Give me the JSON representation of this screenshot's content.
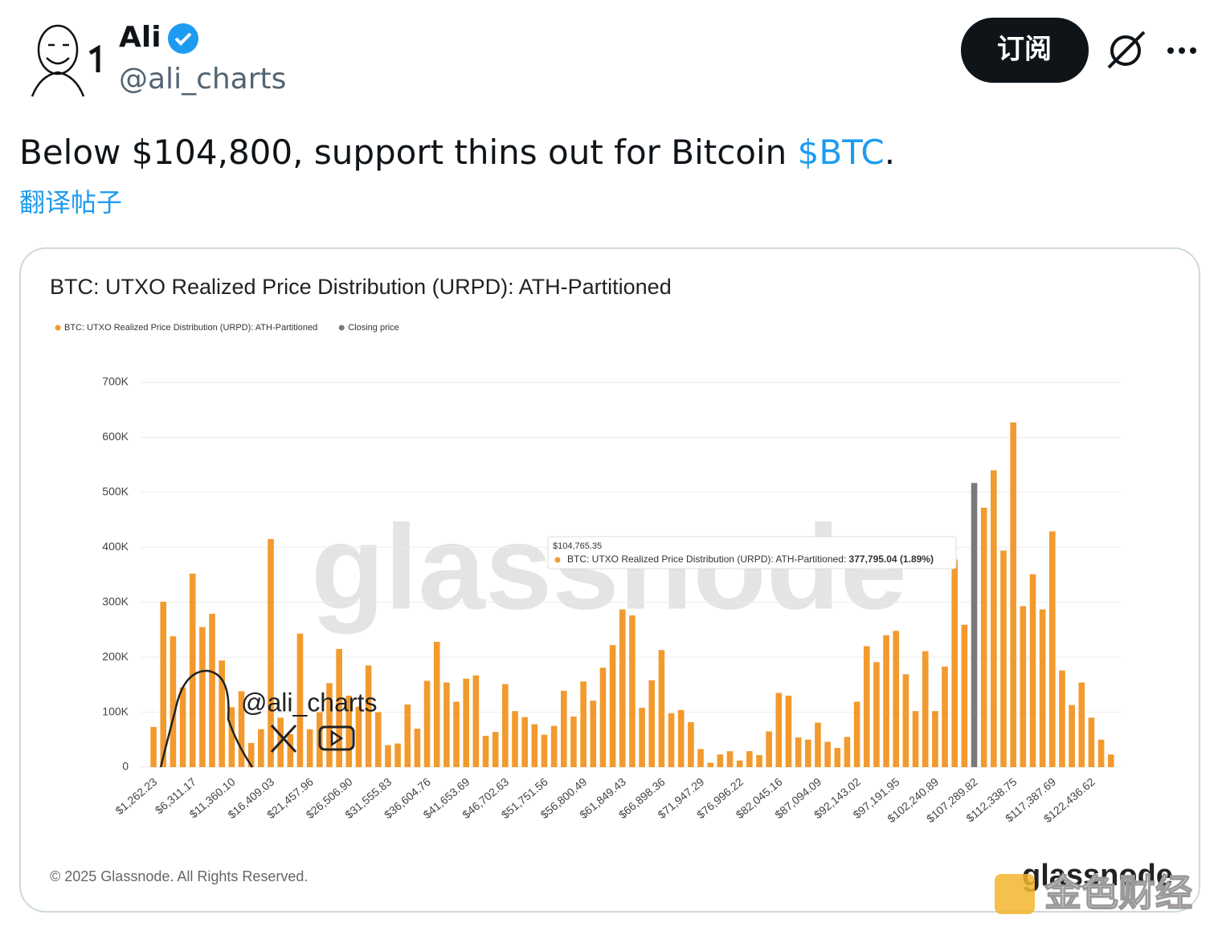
{
  "header": {
    "name": "Ali",
    "handle": "@ali_charts",
    "subscribe": "订阅"
  },
  "post": {
    "text": "Below $104,800, support thins out for Bitcoin ",
    "cashtag": "$BTC",
    "end": ".",
    "translate": "翻译帖子"
  },
  "chart_data": {
    "type": "bar",
    "title": "BTC: UTXO Realized Price Distribution (URPD): ATH-Partitioned",
    "categories": [
      "$1,262.23",
      null,
      null,
      null,
      "$6,311.17",
      null,
      null,
      null,
      "$11,360.10",
      null,
      null,
      null,
      "$16,409.03",
      null,
      null,
      null,
      "$21,457.96",
      null,
      null,
      null,
      "$26,506.90",
      null,
      null,
      null,
      "$31,555.83",
      null,
      null,
      null,
      "$36,604.76",
      null,
      null,
      null,
      "$41,653.69",
      null,
      null,
      null,
      "$46,702.63",
      null,
      null,
      null,
      "$51,751.56",
      null,
      null,
      null,
      "$56,800.49",
      null,
      null,
      null,
      "$61,849.43",
      null,
      null,
      null,
      "$66,898.36",
      null,
      null,
      null,
      "$71,947.29",
      null,
      null,
      null,
      "$76,996.22",
      null,
      null,
      null,
      "$82,045.16",
      null,
      null,
      null,
      "$87,094.09",
      null,
      null,
      null,
      "$92,143.02",
      null,
      null,
      null,
      "$97,191.95",
      null,
      null,
      null,
      "$102,240.89",
      null,
      null,
      null,
      "$107,289.82",
      null,
      null,
      null,
      "$112,338.75",
      null,
      null,
      null,
      "$117,387.69",
      null,
      null,
      null,
      "$122,436.62",
      null,
      null
    ],
    "series": [
      {
        "name": "BTC: UTXO Realized Price Distribution (URPD): ATH-Partitioned",
        "color": "#f29a2e",
        "values": [
          73000,
          301000,
          238000,
          145000,
          352000,
          255000,
          279000,
          194000,
          109000,
          138000,
          44000,
          69000,
          415000,
          90000,
          60000,
          243000,
          69000,
          100000,
          153000,
          215000,
          130000,
          110000,
          185000,
          100000,
          40000,
          43000,
          114000,
          70000,
          157000,
          228000,
          154000,
          119000,
          161000,
          167000,
          57000,
          64000,
          151000,
          102000,
          91000,
          78000,
          59000,
          75000,
          139000,
          92000,
          156000,
          121000,
          181000,
          222000,
          287000,
          276000,
          108000,
          158000,
          213000,
          98000,
          104000,
          82000,
          33000,
          8000,
          23000,
          29000,
          12000,
          29000,
          22000,
          65000,
          135000,
          130000,
          54000,
          50000,
          81000,
          46000,
          35000,
          55000,
          119000,
          220000,
          191000,
          240000,
          248000,
          169000,
          102000,
          211000,
          102000,
          183000,
          377795.04,
          259000,
          null,
          472000,
          540000,
          394000,
          627000,
          293000,
          351000,
          287000,
          429000,
          176000,
          113000,
          154000,
          90000,
          50000,
          23000
        ]
      },
      {
        "name": "Closing price",
        "color": "#7a7a7a",
        "values": [
          null,
          null,
          null,
          null,
          null,
          null,
          null,
          null,
          null,
          null,
          null,
          null,
          null,
          null,
          null,
          null,
          null,
          null,
          null,
          null,
          null,
          null,
          null,
          null,
          null,
          null,
          null,
          null,
          null,
          null,
          null,
          null,
          null,
          null,
          null,
          null,
          null,
          null,
          null,
          null,
          null,
          null,
          null,
          null,
          null,
          null,
          null,
          null,
          null,
          null,
          null,
          null,
          null,
          null,
          null,
          null,
          null,
          null,
          null,
          null,
          null,
          null,
          null,
          null,
          null,
          null,
          null,
          null,
          null,
          null,
          null,
          null,
          null,
          null,
          null,
          null,
          null,
          null,
          null,
          null,
          null,
          null,
          null,
          null,
          517000,
          null,
          null,
          null,
          null,
          null,
          null,
          null,
          null,
          null,
          null,
          null,
          null,
          null,
          null
        ]
      }
    ],
    "ylim": [
      0,
      700000
    ],
    "yticks": [
      0,
      {
        "value": 100000,
        "label": "100K"
      },
      {
        "value": 200000,
        "label": "200K"
      },
      {
        "value": 300000,
        "label": "300K"
      },
      {
        "value": 400000,
        "label": "400K"
      },
      {
        "value": 500000,
        "label": "500K"
      },
      {
        "value": 600000,
        "label": "600K"
      },
      {
        "value": 700000,
        "label": "700K"
      }
    ],
    "grid": true,
    "tooltip": {
      "title": "$104,765.35",
      "label": "BTC: UTXO Realized Price Distribution (URPD): ATH-Partitioned: ",
      "value": "377,795.04 (1.89%)"
    },
    "copyright": "© 2025 Glassnode. All Rights Reserved.",
    "watermark": "glassnode",
    "overlay_handle": "@ali_charts",
    "logo": "glassnode",
    "source_mark": "金色财经"
  }
}
